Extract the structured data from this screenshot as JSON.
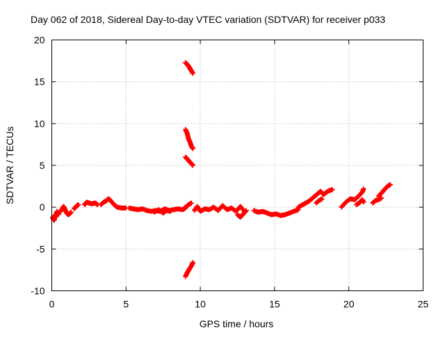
{
  "chart_data": {
    "type": "scatter",
    "title": "Day 062 of 2018, Sidereal Day-to-day VTEC variation (SDTVAR) for receiver p033",
    "xlabel": "GPS time / hours",
    "ylabel": "SDTVAR / TECUs",
    "xlim": [
      0,
      25
    ],
    "ylim": [
      -10,
      20
    ],
    "x_ticks": [
      0,
      5,
      10,
      15,
      20,
      25
    ],
    "y_ticks": [
      -10,
      -5,
      0,
      5,
      10,
      15,
      20
    ],
    "x_tick_labels": [
      "0",
      "5",
      "10",
      "15",
      "20",
      "25"
    ],
    "y_tick_labels": [
      "-10",
      "-5",
      "0",
      "5",
      "10",
      "15",
      "20"
    ],
    "grid": true,
    "legend": "none",
    "marker": "plus",
    "series": [
      {
        "name": "SDTVAR",
        "color": "#ff0000",
        "segments": [
          {
            "x": [
              0.05,
              0.15,
              0.25,
              0.35,
              0.45
            ],
            "y": [
              -1.2,
              -1.6,
              -1.0,
              -0.5,
              -0.9
            ]
          },
          {
            "x": [
              0.6,
              0.7,
              0.8,
              0.9,
              1.0,
              1.1,
              1.2,
              1.3
            ],
            "y": [
              -0.5,
              -0.2,
              0.1,
              -0.3,
              -0.7,
              -0.9,
              -0.8,
              -0.6
            ]
          },
          {
            "x": [
              1.5,
              1.6,
              1.7,
              1.8
            ],
            "y": [
              -0.2,
              0.0,
              0.2,
              0.3
            ]
          },
          {
            "x": [
              2.2,
              2.35,
              2.5,
              2.7,
              2.9,
              3.1
            ],
            "y": [
              0.3,
              0.6,
              0.5,
              0.4,
              0.5,
              0.3
            ]
          },
          {
            "x": [
              3.3,
              3.5,
              3.7,
              3.8,
              3.9,
              4.0,
              4.2,
              4.4,
              4.7,
              5.0
            ],
            "y": [
              0.3,
              0.6,
              0.8,
              1.0,
              0.9,
              0.7,
              0.3,
              0.0,
              -0.1,
              -0.1
            ]
          },
          {
            "x": [
              5.2,
              5.5,
              5.8,
              6.1,
              6.4,
              6.7,
              7.0,
              7.3,
              7.6,
              7.9,
              8.2,
              8.5,
              8.8,
              9.0
            ],
            "y": [
              -0.1,
              -0.2,
              -0.3,
              -0.2,
              -0.4,
              -0.5,
              -0.4,
              -0.5,
              -0.2,
              -0.4,
              -0.3,
              -0.2,
              -0.3,
              -0.1
            ]
          },
          {
            "x": [
              6.9,
              7.2,
              7.5,
              7.7,
              8.0
            ],
            "y": [
              -0.6,
              -0.3,
              -0.7,
              -0.4,
              -0.5
            ]
          },
          {
            "x": [
              8.9,
              9.0,
              9.1,
              9.2,
              9.4
            ],
            "y": [
              -0.2,
              0.0,
              0.1,
              0.3,
              0.5
            ]
          },
          {
            "x": [
              9.0,
              9.1,
              9.2,
              9.3,
              9.4,
              9.5
            ],
            "y": [
              17.3,
              17.1,
              16.9,
              16.6,
              16.3,
              16.0
            ]
          },
          {
            "x": [
              9.0,
              9.1,
              9.15,
              9.2,
              9.3,
              9.4,
              9.5
            ],
            "y": [
              9.3,
              8.9,
              8.6,
              8.2,
              7.8,
              7.3,
              7.0
            ]
          },
          {
            "x": [
              9.0,
              9.1,
              9.2,
              9.3,
              9.4,
              9.5
            ],
            "y": [
              6.0,
              5.8,
              5.6,
              5.4,
              5.2,
              5.0
            ]
          },
          {
            "x": [
              9.0,
              9.1,
              9.2,
              9.3,
              9.4,
              9.5
            ],
            "y": [
              -8.3,
              -7.9,
              -7.6,
              -7.3,
              -7.0,
              -6.6
            ]
          },
          {
            "x": [
              9.6,
              9.8,
              10.0,
              10.3,
              10.6,
              10.9,
              11.2,
              11.5,
              11.8,
              12.1,
              12.4,
              12.7,
              13.0
            ],
            "y": [
              -0.4,
              0.1,
              -0.5,
              -0.2,
              -0.3,
              0.0,
              -0.4,
              0.2,
              -0.3,
              -0.1,
              -0.5,
              0.1,
              -0.6
            ]
          },
          {
            "x": [
              12.5,
              12.7,
              12.9,
              13.1
            ],
            "y": [
              -0.9,
              -1.2,
              -0.8,
              -0.4
            ]
          },
          {
            "x": [
              13.6,
              13.9,
              14.2,
              14.5,
              14.8,
              15.1,
              15.4,
              15.7,
              16.0,
              16.3,
              16.6
            ],
            "y": [
              -0.4,
              -0.6,
              -0.5,
              -0.7,
              -0.9,
              -0.8,
              -1.0,
              -0.9,
              -0.7,
              -0.5,
              -0.3
            ]
          },
          {
            "x": [
              16.6,
              16.9,
              17.1,
              17.3,
              17.5,
              17.7,
              17.9,
              18.1,
              18.3,
              18.5,
              18.7,
              18.9
            ],
            "y": [
              0.0,
              0.3,
              0.5,
              0.7,
              1.0,
              1.3,
              1.6,
              1.9,
              1.5,
              1.8,
              2.0,
              2.1
            ]
          },
          {
            "x": [
              17.8,
              18.0,
              18.2
            ],
            "y": [
              0.5,
              0.8,
              1.0
            ]
          },
          {
            "x": [
              19.5,
              19.8,
              20.1,
              20.4,
              20.7,
              20.9,
              21.0
            ],
            "y": [
              0.0,
              0.6,
              1.0,
              0.9,
              1.4,
              1.8,
              2.2
            ]
          },
          {
            "x": [
              20.5,
              20.7,
              20.9,
              21.0
            ],
            "y": [
              0.3,
              0.5,
              0.9,
              0.6
            ]
          },
          {
            "x": [
              21.6,
              21.8,
              22.0,
              22.2
            ],
            "y": [
              0.5,
              0.8,
              0.9,
              1.1
            ]
          },
          {
            "x": [
              22.0,
              22.2,
              22.4,
              22.6,
              22.8
            ],
            "y": [
              1.3,
              1.7,
              2.1,
              2.5,
              2.7
            ]
          }
        ]
      }
    ]
  }
}
